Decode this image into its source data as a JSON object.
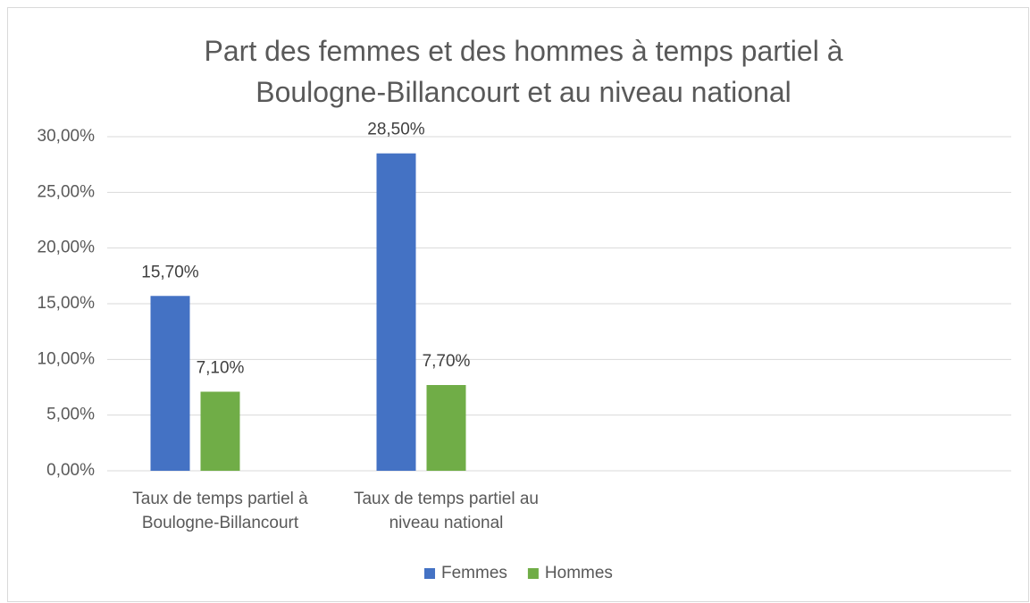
{
  "chart_data": {
    "type": "bar",
    "title": "Part des femmes et des hommes à temps partiel à Boulogne-Billancourt et au niveau national",
    "categories": [
      "Taux de temps partiel à Boulogne-Billancourt",
      "Taux de temps partiel au niveau national",
      null,
      null
    ],
    "series": [
      {
        "name": "Femmes",
        "color": "#4472c4",
        "values": [
          15.7,
          28.5,
          null,
          null
        ],
        "value_labels": [
          "15,70%",
          "28,50%",
          null,
          null
        ]
      },
      {
        "name": "Hommes",
        "color": "#70ad47",
        "values": [
          7.1,
          7.7,
          null,
          null
        ],
        "value_labels": [
          "7,10%",
          "7,70%",
          null,
          null
        ]
      }
    ],
    "ylim": [
      0,
      30
    ],
    "yticks": [
      {
        "value": 0,
        "label": "0,00%"
      },
      {
        "value": 5,
        "label": "5,00%"
      },
      {
        "value": 10,
        "label": "10,00%"
      },
      {
        "value": 15,
        "label": "15,00%"
      },
      {
        "value": 20,
        "label": "20,00%"
      },
      {
        "value": 25,
        "label": "25,00%"
      },
      {
        "value": 30,
        "label": "30,00%"
      }
    ],
    "grid": true,
    "legend": "bottom"
  }
}
